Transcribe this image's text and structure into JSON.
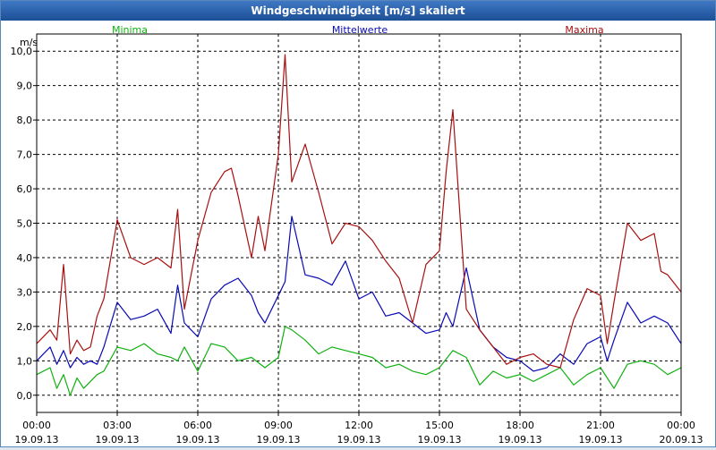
{
  "window": {
    "title": "Windgeschwindigkeit [m/s] skaliert"
  },
  "colors": {
    "minima": "#11b011",
    "mittelwerte": "#0a0ab4",
    "maxima": "#a61010",
    "grid": "#000000"
  },
  "chart_data": {
    "type": "line",
    "title": "Windgeschwindigkeit [m/s] skaliert",
    "ylabel": "m/s",
    "ylim": [
      -0.5,
      10.5
    ],
    "xlim": [
      0,
      24
    ],
    "grid": true,
    "legend_position": "top",
    "yticks": [
      "0,0",
      "1,0",
      "2,0",
      "3,0",
      "4,0",
      "5,0",
      "6,0",
      "7,0",
      "8,0",
      "9,0",
      "10,0"
    ],
    "ytick_values": [
      0,
      1,
      2,
      3,
      4,
      5,
      6,
      7,
      8,
      9,
      10
    ],
    "xticks": [
      {
        "time": "00:00",
        "date": "19.09.13",
        "hour": 0
      },
      {
        "time": "03:00",
        "date": "19.09.13",
        "hour": 3
      },
      {
        "time": "06:00",
        "date": "19.09.13",
        "hour": 6
      },
      {
        "time": "09:00",
        "date": "19.09.13",
        "hour": 9
      },
      {
        "time": "12:00",
        "date": "19.09.13",
        "hour": 12
      },
      {
        "time": "15:00",
        "date": "19.09.13",
        "hour": 15
      },
      {
        "time": "18:00",
        "date": "19.09.13",
        "hour": 18
      },
      {
        "time": "21:00",
        "date": "19.09.13",
        "hour": 21
      },
      {
        "time": "00:00",
        "date": "20.09.13",
        "hour": 24
      }
    ],
    "series": [
      {
        "name": "Minima",
        "key": "minima",
        "x": [
          0,
          0.5,
          0.75,
          1,
          1.25,
          1.5,
          1.75,
          2,
          2.25,
          2.5,
          3,
          3.5,
          4,
          4.5,
          5,
          5.25,
          5.5,
          6,
          6.5,
          7,
          7.5,
          8,
          8.5,
          9,
          9.25,
          9.5,
          10,
          10.5,
          11,
          11.5,
          12,
          12.5,
          13,
          13.5,
          14,
          14.5,
          15,
          15.5,
          16,
          16.5,
          17,
          17.5,
          18,
          18.5,
          19,
          19.5,
          20,
          20.5,
          21,
          21.5,
          22,
          22.5,
          23,
          23.5,
          24
        ],
        "values": [
          0.6,
          0.8,
          0.2,
          0.6,
          0.0,
          0.5,
          0.2,
          0.4,
          0.6,
          0.7,
          1.4,
          1.3,
          1.5,
          1.2,
          1.1,
          1.0,
          1.4,
          0.7,
          1.5,
          1.4,
          1.0,
          1.1,
          0.8,
          1.1,
          2.0,
          1.9,
          1.6,
          1.2,
          1.4,
          1.3,
          1.2,
          1.1,
          0.8,
          0.9,
          0.7,
          0.6,
          0.8,
          1.3,
          1.1,
          0.3,
          0.7,
          0.5,
          0.6,
          0.4,
          0.6,
          0.8,
          0.3,
          0.6,
          0.8,
          0.2,
          0.9,
          1.0,
          0.9,
          0.6,
          0.8
        ]
      },
      {
        "name": "Mittelwerte",
        "key": "mittelwerte",
        "x": [
          0,
          0.5,
          0.75,
          1,
          1.25,
          1.5,
          1.75,
          2,
          2.25,
          2.5,
          3,
          3.5,
          4,
          4.5,
          5,
          5.25,
          5.5,
          6,
          6.5,
          7,
          7.5,
          8,
          8.25,
          8.5,
          9,
          9.25,
          9.5,
          10,
          10.5,
          11,
          11.5,
          12,
          12.5,
          13,
          13.5,
          14,
          14.5,
          15,
          15.25,
          15.5,
          16,
          16.5,
          17,
          17.5,
          18,
          18.5,
          19,
          19.5,
          20,
          20.5,
          21,
          21.25,
          21.5,
          22,
          22.5,
          23,
          23.5,
          24
        ],
        "values": [
          1.0,
          1.4,
          0.9,
          1.3,
          0.8,
          1.1,
          0.9,
          1.0,
          0.9,
          1.4,
          2.7,
          2.2,
          2.3,
          2.5,
          1.8,
          3.2,
          2.1,
          1.7,
          2.8,
          3.2,
          3.4,
          2.9,
          2.4,
          2.1,
          2.9,
          3.3,
          5.2,
          3.5,
          3.4,
          3.2,
          3.9,
          2.8,
          3.0,
          2.3,
          2.4,
          2.1,
          1.8,
          1.9,
          2.4,
          2.0,
          3.7,
          1.9,
          1.4,
          1.1,
          1.0,
          0.7,
          0.8,
          1.2,
          0.9,
          1.5,
          1.7,
          1.0,
          1.6,
          2.7,
          2.1,
          2.3,
          2.1,
          1.5
        ]
      },
      {
        "name": "Maxima",
        "key": "maxima",
        "x": [
          0,
          0.5,
          0.75,
          1,
          1.25,
          1.5,
          1.75,
          2,
          2.25,
          2.5,
          3,
          3.5,
          4,
          4.5,
          5,
          5.25,
          5.5,
          6,
          6.5,
          7,
          7.25,
          7.5,
          8,
          8.25,
          8.5,
          9,
          9.25,
          9.5,
          10,
          10.5,
          11,
          11.5,
          12,
          12.5,
          13,
          13.5,
          14,
          14.5,
          15,
          15.25,
          15.5,
          16,
          16.5,
          17,
          17.5,
          18,
          18.5,
          19,
          19.5,
          20,
          20.5,
          21,
          21.25,
          21.5,
          22,
          22.5,
          23,
          23.25,
          23.5,
          24
        ],
        "values": [
          1.5,
          1.9,
          1.6,
          3.8,
          1.2,
          1.6,
          1.3,
          1.4,
          2.3,
          2.8,
          5.1,
          4.0,
          3.8,
          4.0,
          3.7,
          5.4,
          2.5,
          4.5,
          5.9,
          6.5,
          6.6,
          5.8,
          4.0,
          5.2,
          4.2,
          7.0,
          9.9,
          6.2,
          7.3,
          5.9,
          4.4,
          5.0,
          4.9,
          4.5,
          3.9,
          3.4,
          2.1,
          3.8,
          4.2,
          6.5,
          8.3,
          2.5,
          1.9,
          1.4,
          0.9,
          1.1,
          1.2,
          0.9,
          0.8,
          2.2,
          3.1,
          2.9,
          1.5,
          2.7,
          5.0,
          4.5,
          4.7,
          3.6,
          3.5,
          3.0
        ]
      }
    ]
  }
}
